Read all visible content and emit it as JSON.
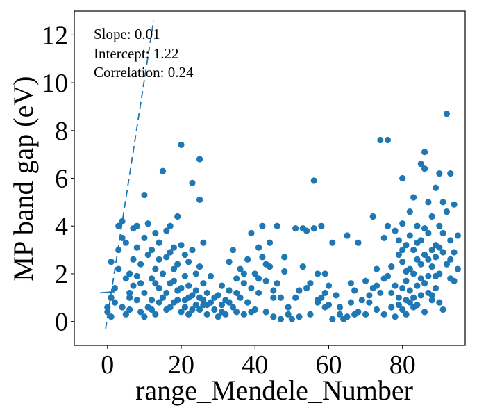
{
  "chart_data": {
    "type": "scatter",
    "title": "",
    "xlabel": "range_Mendele_Number",
    "ylabel": "MP band gap (eV)",
    "xlim": [
      -9,
      97
    ],
    "ylim": [
      -1,
      13
    ],
    "xticks": [
      0,
      20,
      40,
      60,
      80
    ],
    "yticks": [
      0,
      2,
      4,
      6,
      8,
      10,
      12
    ],
    "grid": false,
    "color": "#1f77b4",
    "annotations": [
      "Slope: 0.01",
      "Intercept: 1.22",
      "Correlation: 0.24"
    ],
    "fit_line_solid": {
      "x": [
        -2,
        2
      ],
      "y": [
        1.2,
        1.25
      ]
    },
    "fit_line_dashed": {
      "x": [
        -0.5,
        12.5
      ],
      "y": [
        -0.3,
        12.6
      ]
    },
    "points": [
      [
        0,
        0.4
      ],
      [
        0,
        0.6
      ],
      [
        1,
        2.5
      ],
      [
        1,
        0.2
      ],
      [
        1,
        1.0
      ],
      [
        2,
        1.4
      ],
      [
        2,
        0.8
      ],
      [
        3,
        3.0
      ],
      [
        3,
        2.2
      ],
      [
        3,
        4.0
      ],
      [
        4,
        3.5
      ],
      [
        4,
        4.2
      ],
      [
        4,
        0.6
      ],
      [
        5,
        1.8
      ],
      [
        5,
        0.3
      ],
      [
        5,
        3.3
      ],
      [
        6,
        2.0
      ],
      [
        6,
        1.2
      ],
      [
        6,
        0.5
      ],
      [
        7,
        3.9
      ],
      [
        7,
        2.6
      ],
      [
        7,
        1.5
      ],
      [
        8,
        0.9
      ],
      [
        8,
        4.0
      ],
      [
        8,
        3.1
      ],
      [
        9,
        1.6
      ],
      [
        9,
        2.4
      ],
      [
        9,
        0.4
      ],
      [
        10,
        5.3
      ],
      [
        10,
        3.5
      ],
      [
        10,
        1.2
      ],
      [
        10,
        0.2
      ],
      [
        11,
        4.1
      ],
      [
        11,
        2.8
      ],
      [
        11,
        0.6
      ],
      [
        12,
        3.0
      ],
      [
        12,
        1.8
      ],
      [
        12,
        0.9
      ],
      [
        13,
        2.2
      ],
      [
        13,
        3.7
      ],
      [
        13,
        0.3
      ],
      [
        14,
        1.4
      ],
      [
        14,
        3.3
      ],
      [
        14,
        2.6
      ],
      [
        15,
        6.3
      ],
      [
        15,
        2.0
      ],
      [
        15,
        1.0
      ],
      [
        16,
        3.8
      ],
      [
        16,
        2.7
      ],
      [
        16,
        0.5
      ],
      [
        17,
        4.0
      ],
      [
        17,
        1.6
      ],
      [
        17,
        2.9
      ],
      [
        18,
        2.2
      ],
      [
        18,
        0.8
      ],
      [
        18,
        3.1
      ],
      [
        19,
        4.4
      ],
      [
        19,
        1.3
      ],
      [
        19,
        2.4
      ],
      [
        20,
        7.4
      ],
      [
        20,
        3.2
      ],
      [
        20,
        0.4
      ],
      [
        21,
        1.9
      ],
      [
        21,
        2.8
      ],
      [
        21,
        0.9
      ],
      [
        22,
        2.5
      ],
      [
        22,
        1.5
      ],
      [
        22,
        0.3
      ],
      [
        23,
        5.8
      ],
      [
        23,
        3.0
      ],
      [
        23,
        1.1
      ],
      [
        24,
        2.0
      ],
      [
        24,
        0.7
      ],
      [
        25,
        6.8
      ],
      [
        25,
        5.1
      ],
      [
        25,
        2.3
      ],
      [
        25,
        0.5
      ],
      [
        26,
        3.3
      ],
      [
        26,
        1.6
      ],
      [
        26,
        0.9
      ],
      [
        27,
        1.2
      ],
      [
        27,
        0.3
      ],
      [
        28,
        0.8
      ],
      [
        28,
        1.9
      ],
      [
        29,
        0.5
      ],
      [
        30,
        1.1
      ],
      [
        30,
        0.2
      ],
      [
        31,
        1.5
      ],
      [
        31,
        0.7
      ],
      [
        32,
        0.9
      ],
      [
        32,
        0.3
      ],
      [
        33,
        2.5
      ],
      [
        33,
        1.3
      ],
      [
        34,
        3.0
      ],
      [
        34,
        0.6
      ],
      [
        35,
        1.8
      ],
      [
        35,
        0.4
      ],
      [
        36,
        2.2
      ],
      [
        36,
        1.0
      ],
      [
        37,
        0.3
      ],
      [
        37,
        1.6
      ],
      [
        38,
        2.6
      ],
      [
        38,
        0.8
      ],
      [
        39,
        3.7
      ],
      [
        39,
        1.4
      ],
      [
        40,
        2.0
      ],
      [
        40,
        0.5
      ],
      [
        41,
        3.1
      ],
      [
        41,
        1.2
      ],
      [
        42,
        4.0
      ],
      [
        42,
        2.7
      ],
      [
        43,
        1.7
      ],
      [
        43,
        0.4
      ],
      [
        44,
        3.3
      ],
      [
        44,
        2.3
      ],
      [
        45,
        1.0
      ],
      [
        45,
        0.2
      ],
      [
        46,
        4.0
      ],
      [
        46,
        1.6
      ],
      [
        47,
        0.1
      ],
      [
        48,
        2.1
      ],
      [
        48,
        2.7
      ],
      [
        49,
        0.6
      ],
      [
        50,
        0.1
      ],
      [
        51,
        3.9
      ],
      [
        51,
        1.0
      ],
      [
        52,
        1.3
      ],
      [
        52,
        0.2
      ],
      [
        53,
        3.9
      ],
      [
        53,
        2.3
      ],
      [
        54,
        3.8
      ],
      [
        54,
        1.4
      ],
      [
        55,
        0.3
      ],
      [
        56,
        5.9
      ],
      [
        56,
        3.9
      ],
      [
        57,
        2.0
      ],
      [
        57,
        0.8
      ],
      [
        58,
        1.0
      ],
      [
        58,
        4.0
      ],
      [
        59,
        2.0
      ],
      [
        59,
        0.6
      ],
      [
        60,
        0.7
      ],
      [
        60,
        1.5
      ],
      [
        61,
        3.3
      ],
      [
        61,
        0.1
      ],
      [
        62,
        1.1
      ],
      [
        63,
        0.3
      ],
      [
        64,
        0.1
      ],
      [
        65,
        0.2
      ],
      [
        65,
        3.6
      ],
      [
        66,
        0.8
      ],
      [
        66,
        1.6
      ],
      [
        67,
        1.3
      ],
      [
        68,
        3.3
      ],
      [
        68,
        0.4
      ],
      [
        69,
        0.9
      ],
      [
        70,
        1.7
      ],
      [
        70,
        0.3
      ],
      [
        71,
        0.8
      ],
      [
        72,
        4.4
      ],
      [
        72,
        1.4
      ],
      [
        73,
        0.5
      ],
      [
        73,
        2.2
      ],
      [
        74,
        7.6
      ],
      [
        74,
        1.2
      ],
      [
        75,
        3.5
      ],
      [
        75,
        0.3
      ],
      [
        76,
        7.6
      ],
      [
        76,
        4.0
      ],
      [
        76,
        1.9
      ],
      [
        77,
        2.3
      ],
      [
        77,
        0.6
      ],
      [
        78,
        3.8
      ],
      [
        78,
        1.5
      ],
      [
        78,
        0.2
      ],
      [
        79,
        2.8
      ],
      [
        79,
        1.0
      ],
      [
        80,
        6.0
      ],
      [
        80,
        4.1
      ],
      [
        80,
        2.5
      ],
      [
        80,
        0.5
      ],
      [
        81,
        3.2
      ],
      [
        81,
        1.7
      ],
      [
        81,
        0.9
      ],
      [
        82,
        4.6
      ],
      [
        82,
        2.2
      ],
      [
        82,
        1.3
      ],
      [
        83,
        5.2
      ],
      [
        83,
        3.0
      ],
      [
        83,
        0.6
      ],
      [
        84,
        4.0
      ],
      [
        84,
        2.6
      ],
      [
        84,
        1.5
      ],
      [
        85,
        6.6
      ],
      [
        85,
        3.4
      ],
      [
        85,
        1.1
      ],
      [
        86,
        7.1
      ],
      [
        86,
        6.4
      ],
      [
        86,
        2.8
      ],
      [
        86,
        0.4
      ],
      [
        87,
        5.0
      ],
      [
        87,
        3.7
      ],
      [
        87,
        1.9
      ],
      [
        88,
        4.4
      ],
      [
        88,
        2.3
      ],
      [
        88,
        0.9
      ],
      [
        89,
        5.6
      ],
      [
        89,
        3.2
      ],
      [
        89,
        1.4
      ],
      [
        90,
        6.2
      ],
      [
        90,
        4.0
      ],
      [
        90,
        2.0
      ],
      [
        91,
        5.0
      ],
      [
        91,
        2.9
      ],
      [
        91,
        0.5
      ],
      [
        92,
        8.7
      ],
      [
        92,
        4.6
      ],
      [
        92,
        2.4
      ],
      [
        93,
        6.2
      ],
      [
        93,
        3.4
      ],
      [
        93,
        1.8
      ],
      [
        94,
        4.9
      ],
      [
        94,
        2.9
      ],
      [
        95,
        3.6
      ],
      [
        95,
        2.2
      ],
      [
        84,
        0.7
      ],
      [
        86,
        1.6
      ],
      [
        88,
        1.1
      ],
      [
        90,
        0.8
      ],
      [
        83,
        2.0
      ],
      [
        85,
        2.4
      ],
      [
        87,
        2.6
      ],
      [
        89,
        1.9
      ],
      [
        82,
        3.6
      ],
      [
        84,
        3.3
      ],
      [
        86,
        3.9
      ],
      [
        88,
        3.0
      ],
      [
        90,
        3.1
      ],
      [
        81,
        2.1
      ],
      [
        83,
        1.0
      ],
      [
        85,
        1.8
      ],
      [
        87,
        1.2
      ],
      [
        89,
        2.7
      ],
      [
        79,
        3.4
      ],
      [
        80,
        1.4
      ],
      [
        80,
        3.0
      ],
      [
        81,
        0.3
      ],
      [
        82,
        0.8
      ],
      [
        91,
        3.7
      ],
      [
        93,
        2.6
      ],
      [
        94,
        1.7
      ],
      [
        12,
        0.5
      ],
      [
        14,
        0.8
      ],
      [
        16,
        1.2
      ],
      [
        18,
        1.7
      ],
      [
        20,
        1.4
      ],
      [
        22,
        1.0
      ],
      [
        24,
        1.3
      ],
      [
        26,
        0.7
      ],
      [
        8,
        1.9
      ],
      [
        6,
        1.0
      ],
      [
        13,
        1.6
      ],
      [
        17,
        0.6
      ],
      [
        19,
        0.9
      ],
      [
        21,
        0.6
      ],
      [
        23,
        0.5
      ],
      [
        25,
        1.0
      ],
      [
        27,
        0.7
      ],
      [
        29,
        1.0
      ],
      [
        31,
        0.4
      ],
      [
        33,
        0.8
      ],
      [
        35,
        1.2
      ],
      [
        37,
        2.0
      ],
      [
        39,
        0.4
      ],
      [
        41,
        1.8
      ],
      [
        43,
        2.4
      ],
      [
        45,
        1.3
      ],
      [
        47,
        1.0
      ],
      [
        49,
        0.3
      ],
      [
        55,
        1.6
      ],
      [
        57,
        0.9
      ],
      [
        59,
        1.2
      ],
      [
        63,
        0.6
      ],
      [
        67,
        0.3
      ],
      [
        71,
        1.1
      ],
      [
        73,
        1.5
      ],
      [
        75,
        1.8
      ],
      [
        77,
        1.2
      ],
      [
        79,
        0.7
      ]
    ]
  }
}
